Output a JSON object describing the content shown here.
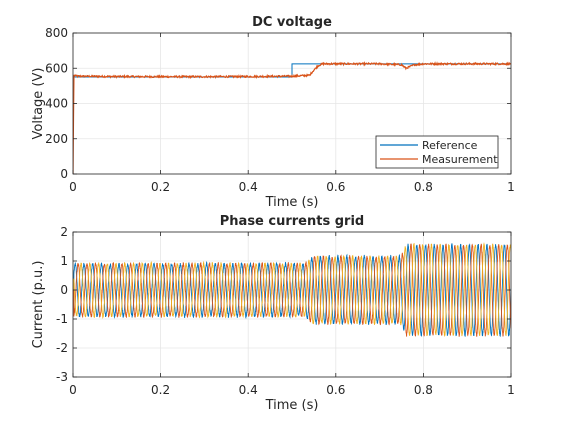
{
  "colors": {
    "reference": "#0072BD",
    "measurement": "#D95319",
    "phase_a": "#0072BD",
    "phase_b": "#D95319",
    "phase_c": "#EDB120",
    "grid": "#e6e6e6",
    "axis": "#262626"
  },
  "chart_data": [
    {
      "type": "line",
      "title": "DC voltage",
      "xlabel": "Time (s)",
      "ylabel": "Voltage (V)",
      "xlim": [
        0,
        1
      ],
      "ylim": [
        0,
        800
      ],
      "xticks": [
        0,
        0.2,
        0.4,
        0.6,
        0.8,
        1
      ],
      "yticks": [
        0,
        200,
        400,
        600,
        800
      ],
      "xtick_labels": [
        "0",
        "0.2",
        "0.4",
        "0.6",
        "0.8",
        "1"
      ],
      "ytick_labels": [
        "0",
        "200",
        "400",
        "600",
        "800"
      ],
      "grid": true,
      "legend_position": "bottom-right",
      "series": [
        {
          "name": "Reference",
          "x": [
            0,
            0.5,
            0.5,
            1.0
          ],
          "y": [
            550,
            550,
            625,
            625
          ]
        },
        {
          "name": "Measurement",
          "x": [
            0,
            0.002,
            0.01,
            0.1,
            0.2,
            0.3,
            0.4,
            0.5,
            0.54,
            0.55,
            0.56,
            0.57,
            0.6,
            0.7,
            0.75,
            0.76,
            0.78,
            0.8,
            0.9,
            1.0
          ],
          "y": [
            0,
            560,
            555,
            553,
            552,
            552,
            553,
            555,
            560,
            590,
            615,
            625,
            625,
            625,
            620,
            600,
            620,
            625,
            625,
            625
          ]
        }
      ]
    },
    {
      "type": "line",
      "title": "Phase currents grid",
      "xlabel": "Time (s)",
      "ylabel": "Current (p.u.)",
      "xlim": [
        0,
        1
      ],
      "ylim": [
        -3,
        2
      ],
      "xticks": [
        0,
        0.2,
        0.4,
        0.6,
        0.8,
        1
      ],
      "yticks": [
        -3,
        -2,
        -1,
        0,
        1,
        2
      ],
      "xtick_labels": [
        "0",
        "0.2",
        "0.4",
        "0.6",
        "0.8",
        "1"
      ],
      "ytick_labels": [
        "-3",
        "-2",
        "-1",
        "0",
        "1",
        "2"
      ],
      "grid": true,
      "frequency_hz": 50,
      "amplitude_envelope": {
        "x": [
          0,
          0.53,
          0.55,
          0.75,
          0.76,
          1.0
        ],
        "y": [
          0.9,
          0.9,
          1.15,
          1.15,
          1.55,
          1.55
        ]
      },
      "series_phase_deg": [
        0,
        -120,
        120
      ]
    }
  ]
}
